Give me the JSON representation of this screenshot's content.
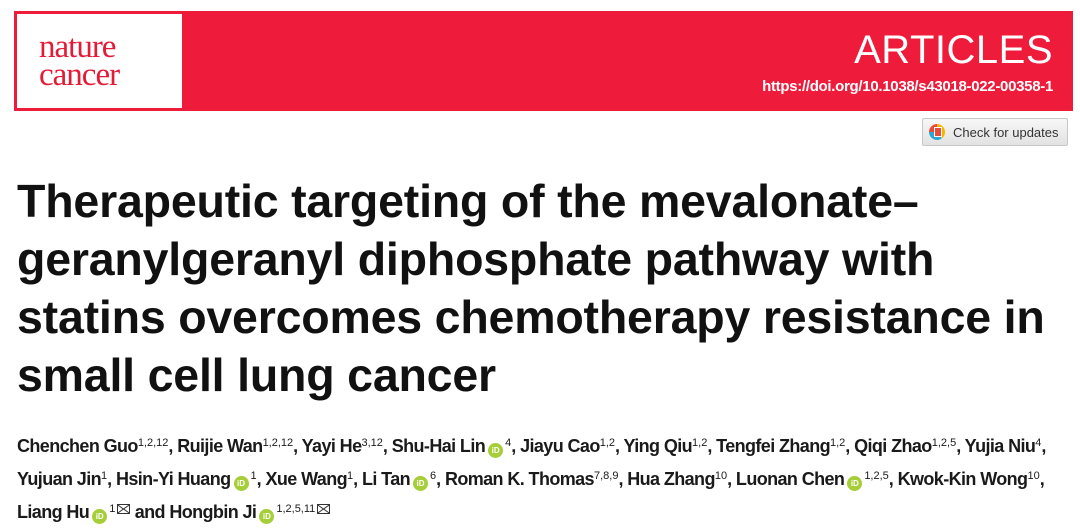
{
  "journal": {
    "logo_line1": "nature",
    "logo_line2": "cancer",
    "section": "ARTICLES",
    "doi": "https://doi.org/10.1038/s43018-022-00358-1",
    "brand_color": "#ee1b3b"
  },
  "check_updates": {
    "label": "Check for updates"
  },
  "title": "Therapeutic targeting of the mevalonate–geranylgeranyl diphosphate pathway with statins overcomes chemotherapy resistance in small cell lung cancer",
  "authors": [
    {
      "name": "Chenchen Guo",
      "sup": "1,2,12",
      "orcid": false,
      "email": false,
      "sep": ", "
    },
    {
      "name": "Ruijie Wan",
      "sup": "1,2,12",
      "orcid": false,
      "email": false,
      "sep": ", "
    },
    {
      "name": "Yayi He",
      "sup": "3,12",
      "orcid": false,
      "email": false,
      "sep": ", "
    },
    {
      "name": "Shu-Hai Lin",
      "sup": "4",
      "orcid": true,
      "email": false,
      "sep": ", "
    },
    {
      "name": "Jiayu Cao",
      "sup": "1,2",
      "orcid": false,
      "email": false,
      "sep": ", "
    },
    {
      "name": "Ying Qiu",
      "sup": "1,2",
      "orcid": false,
      "email": false,
      "sep": ", "
    },
    {
      "name": "Tengfei Zhang",
      "sup": "1,2",
      "orcid": false,
      "email": false,
      "sep": ", "
    },
    {
      "name": "Qiqi Zhao",
      "sup": "1,2,5",
      "orcid": false,
      "email": false,
      "sep": ", "
    },
    {
      "name": "Yujia Niu",
      "sup": "4",
      "orcid": false,
      "email": false,
      "sep": ", "
    },
    {
      "name": "Yujuan Jin",
      "sup": "1",
      "orcid": false,
      "email": false,
      "sep": ", "
    },
    {
      "name": "Hsin-Yi Huang",
      "sup": "1",
      "orcid": true,
      "email": false,
      "sep": ", "
    },
    {
      "name": "Xue Wang",
      "sup": "1",
      "orcid": false,
      "email": false,
      "sep": ", "
    },
    {
      "name": "Li Tan",
      "sup": "6",
      "orcid": true,
      "email": false,
      "sep": ", "
    },
    {
      "name": "Roman K. Thomas",
      "sup": "7,8,9",
      "orcid": false,
      "email": false,
      "sep": ", "
    },
    {
      "name": "Hua Zhang",
      "sup": "10",
      "orcid": false,
      "email": false,
      "sep": ", "
    },
    {
      "name": "Luonan Chen",
      "sup": "1,2,5",
      "orcid": true,
      "email": false,
      "sep": ", "
    },
    {
      "name": "Kwok-Kin Wong",
      "sup": "10",
      "orcid": false,
      "email": false,
      "sep": ", "
    },
    {
      "name": "Liang Hu",
      "sup": "1",
      "orcid": true,
      "email": true,
      "sep": " and "
    },
    {
      "name": "Hongbin Ji",
      "sup": "1,2,5,11",
      "orcid": true,
      "email": true,
      "sep": ""
    }
  ],
  "icons": {
    "orcid": "orcid-icon",
    "email": "envelope-icon",
    "check_updates": "crossmark-icon"
  },
  "orcid_glyph": "iD"
}
